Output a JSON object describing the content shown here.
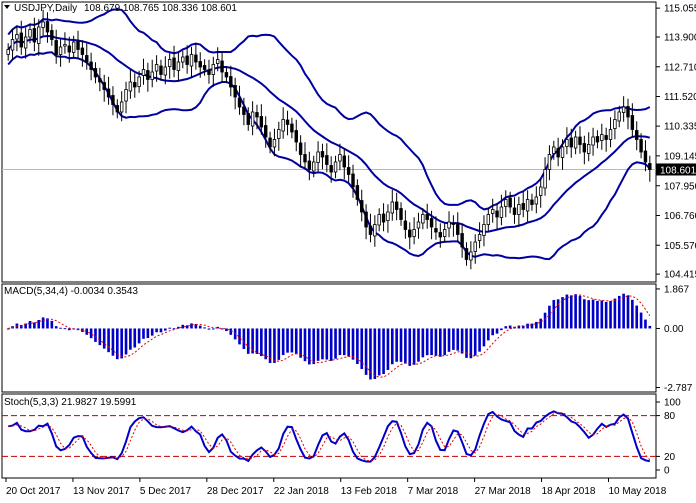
{
  "header": {
    "symbol": "USDJPY,Daily",
    "ohlc": "108.679 108.765 108.336 108.601"
  },
  "chart_data": [
    {
      "type": "candlestick",
      "title": "USDJPY,Daily",
      "ylim": [
        104.1,
        115.3
      ],
      "price_ticks": [
        "115.055",
        "113.900",
        "112.710",
        "111.520",
        "110.335",
        "109.145",
        "107.950",
        "106.760",
        "105.570",
        "104.415"
      ],
      "current_price": "108.601",
      "x_tick_labels": [
        "20 Oct 2017",
        "13 Nov 2017",
        "5 Dec 2017",
        "28 Dec 2017",
        "22 Jan 2018",
        "13 Feb 2018",
        "7 Mar 2018",
        "27 Mar 2018",
        "18 Apr 2018",
        "10 May 2018"
      ],
      "series_bollinger": [
        "upper",
        "middle",
        "lower"
      ],
      "close": [
        113.4,
        113.8,
        114.0,
        113.5,
        113.9,
        114.2,
        113.7,
        114.3,
        114.5,
        114.1,
        113.8,
        113.2,
        113.5,
        113.6,
        113.3,
        113.7,
        113.4,
        113.2,
        112.9,
        112.6,
        112.3,
        112.1,
        111.8,
        111.5,
        111.2,
        110.9,
        111.3,
        111.8,
        112.1,
        111.9,
        112.3,
        112.6,
        112.2,
        112.5,
        112.8,
        112.4,
        112.7,
        113.0,
        112.6,
        112.9,
        113.1,
        112.8,
        113.2,
        112.9,
        112.7,
        112.6,
        112.4,
        112.8,
        113.0,
        112.5,
        112.3,
        111.9,
        111.5,
        111.1,
        110.8,
        110.4,
        110.9,
        110.7,
        110.3,
        109.9,
        109.5,
        109.8,
        110.2,
        110.6,
        110.4,
        110.1,
        109.7,
        109.2,
        108.9,
        108.6,
        108.9,
        109.3,
        109.1,
        108.8,
        108.5,
        108.9,
        109.2,
        108.7,
        108.4,
        107.9,
        107.4,
        106.9,
        106.3,
        106.0,
        106.4,
        106.8,
        106.5,
        106.9,
        107.3,
        107.0,
        106.6,
        106.2,
        105.9,
        106.2,
        106.5,
        106.8,
        106.6,
        106.3,
        106.1,
        105.9,
        106.2,
        106.5,
        106.4,
        106.0,
        105.5,
        105.0,
        105.3,
        105.7,
        106.0,
        106.4,
        106.8,
        107.0,
        106.7,
        107.1,
        107.4,
        107.1,
        106.8,
        107.2,
        107.0,
        107.4,
        107.2,
        107.5,
        107.9,
        108.6,
        109.2,
        109.5,
        109.1,
        109.5,
        109.8,
        109.5,
        109.9,
        109.6,
        109.3,
        109.6,
        109.9,
        109.7,
        110.0,
        109.8,
        110.2,
        110.6,
        110.9,
        111.1,
        110.7,
        110.2,
        109.8,
        109.3,
        108.9,
        108.6
      ],
      "macd_label": "MACD(5,34,4) -0.0034 0.3543",
      "macd_ticks": [
        "1.867",
        "0.00",
        "-2.787"
      ],
      "macd_ylim": [
        -3.0,
        2.1
      ],
      "stoch_label": "Stoch(5,3,3) 21.9827 19.5991",
      "stoch_ticks": [
        "100",
        "80",
        "20",
        "0"
      ],
      "stoch_ylim": [
        0,
        100
      ],
      "stoch_levels": [
        20,
        80
      ]
    }
  ],
  "colors": {
    "candle": "#000000",
    "bollinger": "#0000a0",
    "histogram": "#0000c8",
    "signal": "#e00000",
    "stoch_main": "#0000c8",
    "level_line": "#c00000",
    "current_price_line": "#b8b8b8"
  }
}
